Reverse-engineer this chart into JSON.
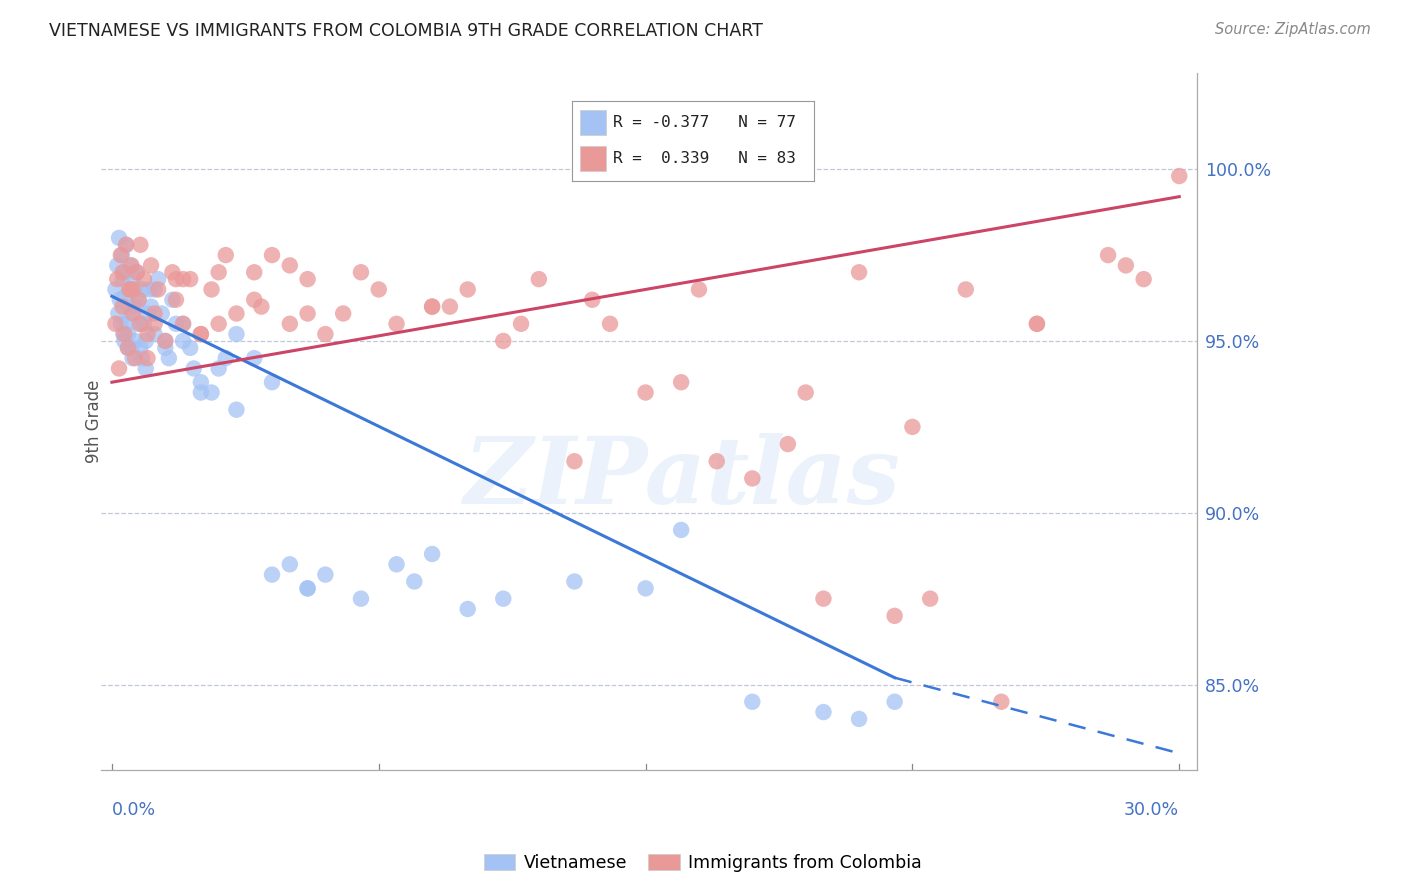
{
  "title": "VIETNAMESE VS IMMIGRANTS FROM COLOMBIA 9TH GRADE CORRELATION CHART",
  "source": "Source: ZipAtlas.com",
  "ylabel": "9th Grade",
  "ytick_positions": [
    85.0,
    90.0,
    95.0,
    100.0
  ],
  "ytick_labels": [
    "85.0%",
    "90.0%",
    "95.0%",
    "100.0%"
  ],
  "ymin": 82.5,
  "ymax": 102.8,
  "xmin": -0.3,
  "xmax": 30.5,
  "blue_R": -0.377,
  "blue_N": 77,
  "pink_R": 0.339,
  "pink_N": 83,
  "blue_color": "#a4c2f4",
  "pink_color": "#ea9999",
  "blue_line_color": "#3c78d8",
  "pink_line_color": "#cc4466",
  "watermark_text": "ZIPatlas",
  "blue_line_x0": 0.0,
  "blue_line_y0": 96.3,
  "blue_line_x1": 22.0,
  "blue_line_y1": 85.2,
  "blue_dash_x0": 22.0,
  "blue_dash_y0": 85.2,
  "blue_dash_x1": 30.0,
  "blue_dash_y1": 83.0,
  "pink_line_x0": 0.0,
  "pink_line_y0": 93.8,
  "pink_line_x1": 30.0,
  "pink_line_y1": 99.2,
  "blue_pts_x": [
    0.1,
    0.15,
    0.18,
    0.2,
    0.22,
    0.25,
    0.28,
    0.3,
    0.32,
    0.35,
    0.38,
    0.4,
    0.42,
    0.45,
    0.5,
    0.52,
    0.55,
    0.58,
    0.6,
    0.65,
    0.7,
    0.75,
    0.8,
    0.85,
    0.9,
    0.95,
    1.0,
    1.1,
    1.2,
    1.3,
    1.5,
    1.6,
    1.7,
    1.8,
    2.0,
    2.2,
    2.5,
    2.8,
    3.0,
    3.5,
    4.0,
    4.5,
    5.0,
    5.5,
    6.0,
    7.0,
    8.0,
    8.5,
    9.0,
    10.0,
    11.0,
    13.0,
    15.0,
    16.0,
    18.0,
    20.0,
    21.0,
    22.0,
    3.2,
    2.3,
    1.4,
    0.45,
    0.55,
    0.65,
    0.75,
    0.85,
    0.95,
    1.05,
    1.5,
    2.5,
    3.5,
    4.5,
    5.5,
    0.35,
    0.6,
    1.2,
    2.0
  ],
  "blue_pts_y": [
    96.5,
    97.2,
    95.8,
    98.0,
    96.2,
    95.5,
    97.5,
    96.8,
    95.2,
    97.0,
    96.3,
    97.8,
    95.5,
    94.8,
    96.0,
    97.2,
    95.8,
    94.5,
    96.5,
    95.0,
    97.0,
    96.2,
    94.8,
    96.5,
    95.5,
    94.2,
    95.8,
    96.0,
    95.2,
    96.8,
    95.0,
    94.5,
    96.2,
    95.5,
    95.0,
    94.8,
    93.8,
    93.5,
    94.2,
    93.0,
    94.5,
    93.8,
    88.5,
    87.8,
    88.2,
    87.5,
    88.5,
    88.0,
    88.8,
    87.2,
    87.5,
    88.0,
    87.8,
    89.5,
    84.5,
    84.2,
    84.0,
    84.5,
    94.5,
    94.2,
    95.8,
    95.2,
    94.8,
    96.0,
    95.5,
    94.5,
    95.0,
    96.5,
    94.8,
    93.5,
    95.2,
    88.2,
    87.8,
    95.0,
    96.8,
    96.5,
    95.5
  ],
  "pink_pts_x": [
    0.1,
    0.15,
    0.2,
    0.25,
    0.3,
    0.35,
    0.4,
    0.45,
    0.5,
    0.55,
    0.6,
    0.65,
    0.7,
    0.75,
    0.8,
    0.9,
    1.0,
    1.1,
    1.2,
    1.3,
    1.5,
    1.7,
    1.8,
    2.0,
    2.2,
    2.5,
    2.8,
    3.0,
    3.5,
    4.0,
    4.5,
    5.0,
    5.5,
    6.0,
    7.0,
    8.0,
    9.0,
    10.0,
    11.0,
    12.0,
    13.0,
    14.0,
    15.0,
    16.0,
    17.0,
    18.0,
    19.0,
    20.0,
    21.0,
    22.0,
    23.0,
    24.0,
    25.0,
    26.0,
    28.0,
    29.0,
    30.0,
    0.3,
    0.5,
    0.8,
    1.2,
    1.8,
    2.5,
    3.2,
    4.2,
    5.5,
    7.5,
    9.5,
    11.5,
    13.5,
    16.5,
    19.5,
    22.5,
    26.0,
    28.5,
    0.6,
    1.0,
    2.0,
    3.0,
    4.0,
    5.0,
    6.5,
    9.0
  ],
  "pink_pts_y": [
    95.5,
    96.8,
    94.2,
    97.5,
    96.0,
    95.2,
    97.8,
    94.8,
    96.5,
    97.2,
    95.8,
    94.5,
    97.0,
    96.2,
    95.5,
    96.8,
    94.5,
    97.2,
    95.8,
    96.5,
    95.0,
    97.0,
    96.2,
    95.5,
    96.8,
    95.2,
    96.5,
    97.0,
    95.8,
    96.2,
    97.5,
    95.5,
    96.8,
    95.2,
    97.0,
    95.5,
    96.0,
    96.5,
    95.0,
    96.8,
    91.5,
    95.5,
    93.5,
    93.8,
    91.5,
    91.0,
    92.0,
    87.5,
    97.0,
    87.0,
    87.5,
    96.5,
    84.5,
    95.5,
    97.5,
    96.8,
    99.8,
    97.0,
    96.5,
    97.8,
    95.5,
    96.8,
    95.2,
    97.5,
    96.0,
    95.8,
    96.5,
    96.0,
    95.5,
    96.2,
    96.5,
    93.5,
    92.5,
    95.5,
    97.2,
    96.5,
    95.2,
    96.8,
    95.5,
    97.0,
    97.2,
    95.8,
    96.0
  ]
}
